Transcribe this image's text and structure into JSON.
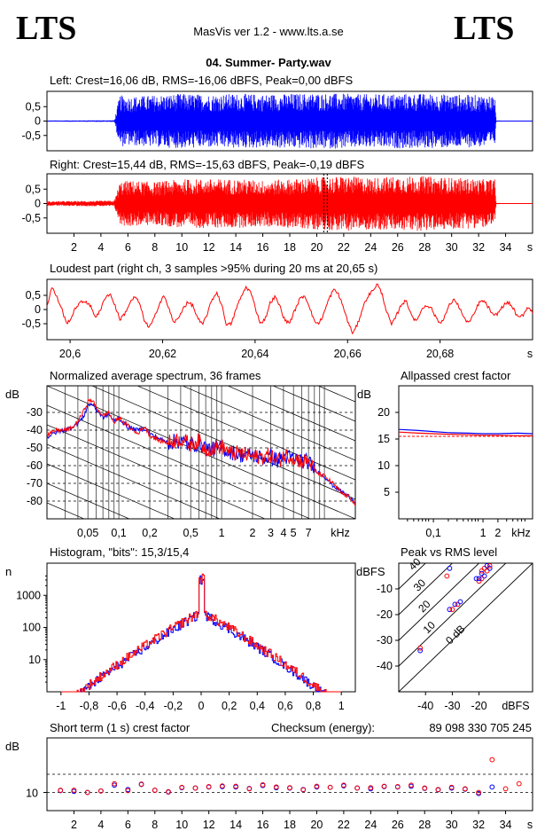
{
  "header": {
    "logo_left": "LTS",
    "logo_right": "LTS",
    "app_title": "MasVis ver 1.2 - www.lts.a.se",
    "file_title": "04. Summer- Party.wav"
  },
  "colors": {
    "left_channel": "#0000ff",
    "right_channel": "#ff0000",
    "axis": "#000000"
  },
  "chart_data": [
    {
      "id": "left-waveform",
      "type": "line",
      "title": "Left: Crest=16,06 dB, RMS=-16,06 dBFS, Peak=0,00 dBFS",
      "ylim": [
        -1,
        1
      ],
      "xlim": [
        0,
        36
      ],
      "yticks": [
        "0,5",
        "0",
        "-0,5"
      ],
      "ytick_values": [
        0.5,
        0,
        -0.5
      ],
      "envelope": [
        [
          0,
          0.02
        ],
        [
          5,
          0.03
        ],
        [
          5.4,
          0.9
        ],
        [
          6,
          0.85
        ],
        [
          8,
          0.9
        ],
        [
          10,
          0.95
        ],
        [
          12,
          0.92
        ],
        [
          14,
          0.95
        ],
        [
          16,
          0.93
        ],
        [
          18,
          0.95
        ],
        [
          20,
          0.97
        ],
        [
          22,
          0.95
        ],
        [
          24,
          0.93
        ],
        [
          26,
          0.95
        ],
        [
          28,
          0.95
        ],
        [
          30,
          0.93
        ],
        [
          32,
          0.9
        ],
        [
          33.2,
          0.9
        ],
        [
          33.3,
          0.02
        ],
        [
          36,
          0.0
        ]
      ]
    },
    {
      "id": "right-waveform",
      "type": "line",
      "title": "Right: Crest=15,44 dB, RMS=-15,63 dBFS, Peak=-0,19 dBFS",
      "ylim": [
        -1,
        1
      ],
      "xlim": [
        0,
        36
      ],
      "yticks": [
        "0,5",
        "0",
        "-0,5"
      ],
      "ytick_values": [
        0.5,
        0,
        -0.5
      ],
      "xticks": [
        "2",
        "4",
        "6",
        "8",
        "10",
        "12",
        "14",
        "16",
        "18",
        "20",
        "22",
        "24",
        "26",
        "28",
        "30",
        "32",
        "34"
      ],
      "xtick_values": [
        2,
        4,
        6,
        8,
        10,
        12,
        14,
        16,
        18,
        20,
        22,
        24,
        26,
        28,
        30,
        32,
        34
      ],
      "xunit": "s",
      "marker_x": 20.65,
      "envelope": [
        [
          0,
          0.08
        ],
        [
          5,
          0.1
        ],
        [
          5.4,
          0.75
        ],
        [
          6,
          0.8
        ],
        [
          8,
          0.75
        ],
        [
          10,
          0.85
        ],
        [
          12,
          0.85
        ],
        [
          14,
          0.85
        ],
        [
          16,
          0.8
        ],
        [
          18,
          0.85
        ],
        [
          20,
          0.9
        ],
        [
          22,
          0.95
        ],
        [
          24,
          0.9
        ],
        [
          26,
          0.95
        ],
        [
          28,
          0.95
        ],
        [
          30,
          0.9
        ],
        [
          32,
          0.85
        ],
        [
          33.2,
          0.85
        ],
        [
          33.3,
          0.02
        ],
        [
          36,
          0.0
        ]
      ]
    },
    {
      "id": "loudest-part",
      "type": "line",
      "title": "Loudest part (right ch, 3 samples >95% during 20 ms at 20,65 s)",
      "xlim": [
        20.595,
        20.7
      ],
      "ylim": [
        -1,
        1
      ],
      "yticks": [
        "0,5",
        "0",
        "-0,5"
      ],
      "ytick_values": [
        0.5,
        0,
        -0.5
      ],
      "xticks": [
        "20,6",
        "20,62",
        "20,64",
        "20,66",
        "20,68"
      ],
      "xtick_values": [
        20.6,
        20.62,
        20.64,
        20.66,
        20.68
      ],
      "xunit": "s",
      "y": [
        0.1,
        0.8,
        0.45,
        0.05,
        -0.5,
        -0.3,
        0.1,
        0.25,
        0.3,
        0.1,
        -0.25,
        -0.05,
        0.45,
        0.55,
        0.15,
        -0.35,
        -0.15,
        0.2,
        0.45,
        0.25,
        -0.35,
        -0.65,
        -0.35,
        0.15,
        0.5,
        0.1,
        -0.45,
        -0.35,
        0.05,
        0.25,
        0.15,
        -0.3,
        -0.55,
        -0.15,
        0.35,
        0.6,
        0.15,
        -0.55,
        -0.5,
        0.05,
        0.45,
        0.8,
        0.6,
        0.0,
        -0.5,
        -0.3,
        0.25,
        0.45,
        0.1,
        -0.4,
        -0.45,
        -0.05,
        0.35,
        0.5,
        0.15,
        -0.4,
        -0.5,
        -0.15,
        0.35,
        0.7,
        0.55,
        0.1,
        -0.45,
        -0.85,
        -0.5,
        0.05,
        0.45,
        0.65,
        0.9,
        0.55,
        -0.1,
        -0.55,
        -0.2,
        0.2,
        0.3,
        -0.15,
        -0.45,
        -0.05,
        0.15,
        0.1,
        -0.25,
        -0.5,
        -0.2,
        0.2,
        0.35,
        0.05,
        -0.35,
        -0.45,
        -0.15,
        0.25,
        0.3,
        0.05,
        -0.25,
        -0.1,
        0.15,
        0.25,
        0.05,
        -0.3,
        -0.2,
        0.1,
        -0.1
      ]
    },
    {
      "id": "spectrum",
      "type": "line",
      "title": "Normalized average spectrum, 36 frames",
      "ylabel": "dB",
      "xunit": "kHz",
      "ylim": [
        -90,
        -15
      ],
      "yticks": [
        "-30",
        "-40",
        "-50",
        "-60",
        "-70",
        "-80"
      ],
      "ytick_values": [
        -30,
        -40,
        -50,
        -60,
        -70,
        -80
      ],
      "xticks": [
        "0,05",
        "0,1",
        "0,2",
        "0,5",
        "1",
        "2",
        "3",
        "4",
        "5",
        "7"
      ],
      "xtick_values": [
        0.05,
        0.1,
        0.2,
        0.5,
        1,
        2,
        3,
        4,
        5,
        7
      ],
      "xlim": [
        0.02,
        20
      ],
      "series": [
        {
          "color": "#0000ff",
          "x": [
            0.02,
            0.025,
            0.03,
            0.035,
            0.04,
            0.045,
            0.05,
            0.055,
            0.06,
            0.07,
            0.08,
            0.09,
            0.1,
            0.12,
            0.15,
            0.18,
            0.2,
            0.25,
            0.3,
            0.4,
            0.5,
            0.6,
            0.7,
            0.8,
            1,
            1.2,
            1.5,
            2,
            2.5,
            3,
            3.5,
            4,
            5,
            6,
            7,
            8,
            10,
            12,
            15,
            18,
            20
          ],
          "y": [
            -44,
            -41,
            -40,
            -38,
            -36,
            -33,
            -26,
            -25,
            -28,
            -33,
            -31,
            -35,
            -33,
            -38,
            -40,
            -39,
            -42,
            -45,
            -47,
            -46,
            -49,
            -47,
            -50,
            -51,
            -50,
            -52,
            -54,
            -54,
            -56,
            -55,
            -57,
            -55,
            -56,
            -57,
            -58,
            -62,
            -66,
            -71,
            -75,
            -78,
            -80
          ]
        },
        {
          "color": "#ff0000",
          "x": [
            0.02,
            0.025,
            0.03,
            0.035,
            0.04,
            0.045,
            0.05,
            0.055,
            0.06,
            0.07,
            0.08,
            0.09,
            0.1,
            0.12,
            0.15,
            0.18,
            0.2,
            0.25,
            0.3,
            0.4,
            0.5,
            0.6,
            0.7,
            0.8,
            1,
            1.2,
            1.5,
            2,
            2.5,
            3,
            3.5,
            4,
            5,
            6,
            7,
            8,
            10,
            12,
            15,
            18,
            20
          ],
          "y": [
            -43,
            -40,
            -40,
            -39,
            -35,
            -30,
            -24,
            -23,
            -27,
            -32,
            -30,
            -36,
            -33,
            -37,
            -42,
            -38,
            -43,
            -46,
            -47,
            -45,
            -48,
            -46,
            -51,
            -50,
            -49,
            -53,
            -53,
            -55,
            -55,
            -54,
            -58,
            -54,
            -55,
            -58,
            -57,
            -63,
            -66,
            -70,
            -76,
            -78,
            -82
          ]
        }
      ]
    },
    {
      "id": "allpassed-crest",
      "type": "line",
      "title": "Allpassed crest factor",
      "ylabel": "dB",
      "xunit": "kHz",
      "ylim": [
        0,
        25
      ],
      "yticks": [
        "20",
        "15",
        "10",
        "5"
      ],
      "ytick_values": [
        20,
        15,
        10,
        5
      ],
      "xticks": [
        "0,1",
        "1",
        "2"
      ],
      "xtick_values": [
        0.1,
        1,
        2
      ],
      "xlim": [
        0.02,
        10
      ],
      "series": [
        {
          "color": "#0000ff",
          "x": [
            0.02,
            0.05,
            0.1,
            0.2,
            0.5,
            1,
            2,
            5,
            10
          ],
          "y": [
            16.8,
            16.6,
            16.4,
            16.2,
            16.1,
            16.0,
            16.0,
            16.1,
            16.0
          ]
        },
        {
          "color": "#ff0000",
          "x": [
            0.02,
            0.05,
            0.1,
            0.2,
            0.5,
            1,
            2,
            5,
            10
          ],
          "y": [
            16.3,
            16.1,
            16.0,
            15.9,
            15.8,
            15.7,
            15.7,
            15.6,
            15.6
          ]
        }
      ],
      "ref_line": 15.5
    },
    {
      "id": "histogram",
      "type": "line",
      "title": "Histogram, \"bits\": 15,3/15,4",
      "ylabel": "n",
      "xlim": [
        -1.1,
        1.1
      ],
      "ylog": true,
      "ylim": [
        1,
        10000
      ],
      "yticks": [
        "1000",
        "100",
        "10"
      ],
      "ytick_values": [
        1000,
        100,
        10
      ],
      "xticks": [
        "-1",
        "-0,8",
        "-0,6",
        "-0,4",
        "-0,2",
        "0",
        "0,2",
        "0,4",
        "0,6",
        "0,8",
        "1"
      ],
      "xtick_values": [
        -1,
        -0.8,
        -0.6,
        -0.4,
        -0.2,
        0,
        0.2,
        0.4,
        0.6,
        0.8,
        1
      ]
    },
    {
      "id": "peak-vs-rms",
      "type": "scatter",
      "title": "Peak vs RMS level",
      "ylabel": "dBFS",
      "xlabel": "dBFS",
      "xlim": [
        -50,
        0
      ],
      "ylim": [
        -50,
        0
      ],
      "yticks": [
        "-10",
        "-20",
        "-30",
        "-40"
      ],
      "ytick_values": [
        -10,
        -20,
        -30,
        -40
      ],
      "xticks": [
        "-40",
        "-30",
        "-20"
      ],
      "xtick_values": [
        -40,
        -30,
        -20
      ],
      "diag_labels": [
        "40",
        "30",
        "20",
        "10",
        "0 dB"
      ],
      "diag_offsets": [
        40,
        30,
        20,
        10,
        0
      ],
      "points": [
        {
          "x": -31,
          "y": -2,
          "c": "#0000ff"
        },
        {
          "x": -32,
          "y": -5,
          "c": "#ff0000"
        },
        {
          "x": -21,
          "y": -6,
          "c": "#0000ff"
        },
        {
          "x": -20,
          "y": -7,
          "c": "#ff0000"
        },
        {
          "x": -19,
          "y": -4,
          "c": "#0000ff"
        },
        {
          "x": -18,
          "y": -2,
          "c": "#ff0000"
        },
        {
          "x": -17,
          "y": -1,
          "c": "#0000ff"
        },
        {
          "x": -17,
          "y": -3,
          "c": "#ff0000"
        },
        {
          "x": -18,
          "y": -5,
          "c": "#0000ff"
        },
        {
          "x": -19,
          "y": -6,
          "c": "#ff0000"
        },
        {
          "x": -16,
          "y": -2,
          "c": "#0000ff"
        },
        {
          "x": -16,
          "y": -1,
          "c": "#ff0000"
        },
        {
          "x": -20,
          "y": -6,
          "c": "#0000ff"
        },
        {
          "x": -19,
          "y": -3,
          "c": "#ff0000"
        },
        {
          "x": -29,
          "y": -16,
          "c": "#0000ff"
        },
        {
          "x": -28,
          "y": -16,
          "c": "#ff0000"
        },
        {
          "x": -31,
          "y": -18,
          "c": "#0000ff"
        },
        {
          "x": -30,
          "y": -18,
          "c": "#ff0000"
        },
        {
          "x": -27,
          "y": -15,
          "c": "#0000ff"
        },
        {
          "x": -42,
          "y": -34,
          "c": "#0000ff"
        },
        {
          "x": -42,
          "y": -33,
          "c": "#ff0000"
        }
      ]
    },
    {
      "id": "short-term-crest",
      "type": "scatter",
      "title": "Short term (1 s) crest factor",
      "ylabel": "dB",
      "xunit": "s",
      "xlim": [
        0,
        36
      ],
      "ylim": [
        5,
        25
      ],
      "yticks": [
        "10"
      ],
      "ytick_values": [
        10
      ],
      "dashed_lines": [
        10,
        15
      ],
      "xticks": [
        "2",
        "4",
        "6",
        "8",
        "10",
        "12",
        "14",
        "16",
        "18",
        "20",
        "22",
        "24",
        "26",
        "28",
        "30",
        "32",
        "34"
      ],
      "xtick_values": [
        2,
        4,
        6,
        8,
        10,
        12,
        14,
        16,
        18,
        20,
        22,
        24,
        26,
        28,
        30,
        32,
        34
      ],
      "blue": [
        [
          1,
          10.5
        ],
        [
          2,
          10.3
        ],
        [
          3,
          10
        ],
        [
          4,
          10.4
        ],
        [
          5,
          12
        ],
        [
          6,
          10.8
        ],
        [
          7,
          12.2
        ],
        [
          8,
          10.6
        ],
        [
          9,
          10.1
        ],
        [
          10,
          11.3
        ],
        [
          11,
          11.2
        ],
        [
          12,
          11.5
        ],
        [
          13,
          11.6
        ],
        [
          14,
          11.5
        ],
        [
          15,
          11.1
        ],
        [
          16,
          11.9
        ],
        [
          17,
          11.3
        ],
        [
          18,
          11.2
        ],
        [
          19,
          10.8
        ],
        [
          20,
          11.5
        ],
        [
          21,
          11.4
        ],
        [
          22,
          11.8
        ],
        [
          23,
          11.2
        ],
        [
          24,
          11
        ],
        [
          25,
          11.6
        ],
        [
          26,
          11.5
        ],
        [
          27,
          11.7
        ],
        [
          28,
          11.1
        ],
        [
          29,
          10.7
        ],
        [
          30,
          11.2
        ],
        [
          31,
          10.9
        ],
        [
          32,
          9.7
        ],
        [
          33,
          11.5
        ]
      ],
      "red": [
        [
          1,
          10.6
        ],
        [
          2,
          10.6
        ],
        [
          3,
          10
        ],
        [
          4,
          10.4
        ],
        [
          5,
          12.4
        ],
        [
          6,
          10.5
        ],
        [
          7,
          12.3
        ],
        [
          8,
          10.6
        ],
        [
          9,
          10.2
        ],
        [
          10,
          11.4
        ],
        [
          11,
          11.2
        ],
        [
          12,
          11.6
        ],
        [
          13,
          11.8
        ],
        [
          14,
          11.7
        ],
        [
          15,
          11
        ],
        [
          16,
          12.1
        ],
        [
          17,
          11.5
        ],
        [
          18,
          11.3
        ],
        [
          19,
          10.7
        ],
        [
          20,
          11.7
        ],
        [
          21,
          11.4
        ],
        [
          22,
          12
        ],
        [
          23,
          11.2
        ],
        [
          24,
          11.3
        ],
        [
          25,
          11.7
        ],
        [
          26,
          11.6
        ],
        [
          27,
          12
        ],
        [
          28,
          11.2
        ],
        [
          29,
          10.8
        ],
        [
          30,
          11.4
        ],
        [
          31,
          11
        ],
        [
          32,
          10
        ],
        [
          33,
          19
        ],
        [
          34,
          11
        ],
        [
          35,
          12.4
        ]
      ],
      "checksum_label": "Checksum (energy):",
      "checksum_value": "89 098 330 705 245"
    }
  ]
}
